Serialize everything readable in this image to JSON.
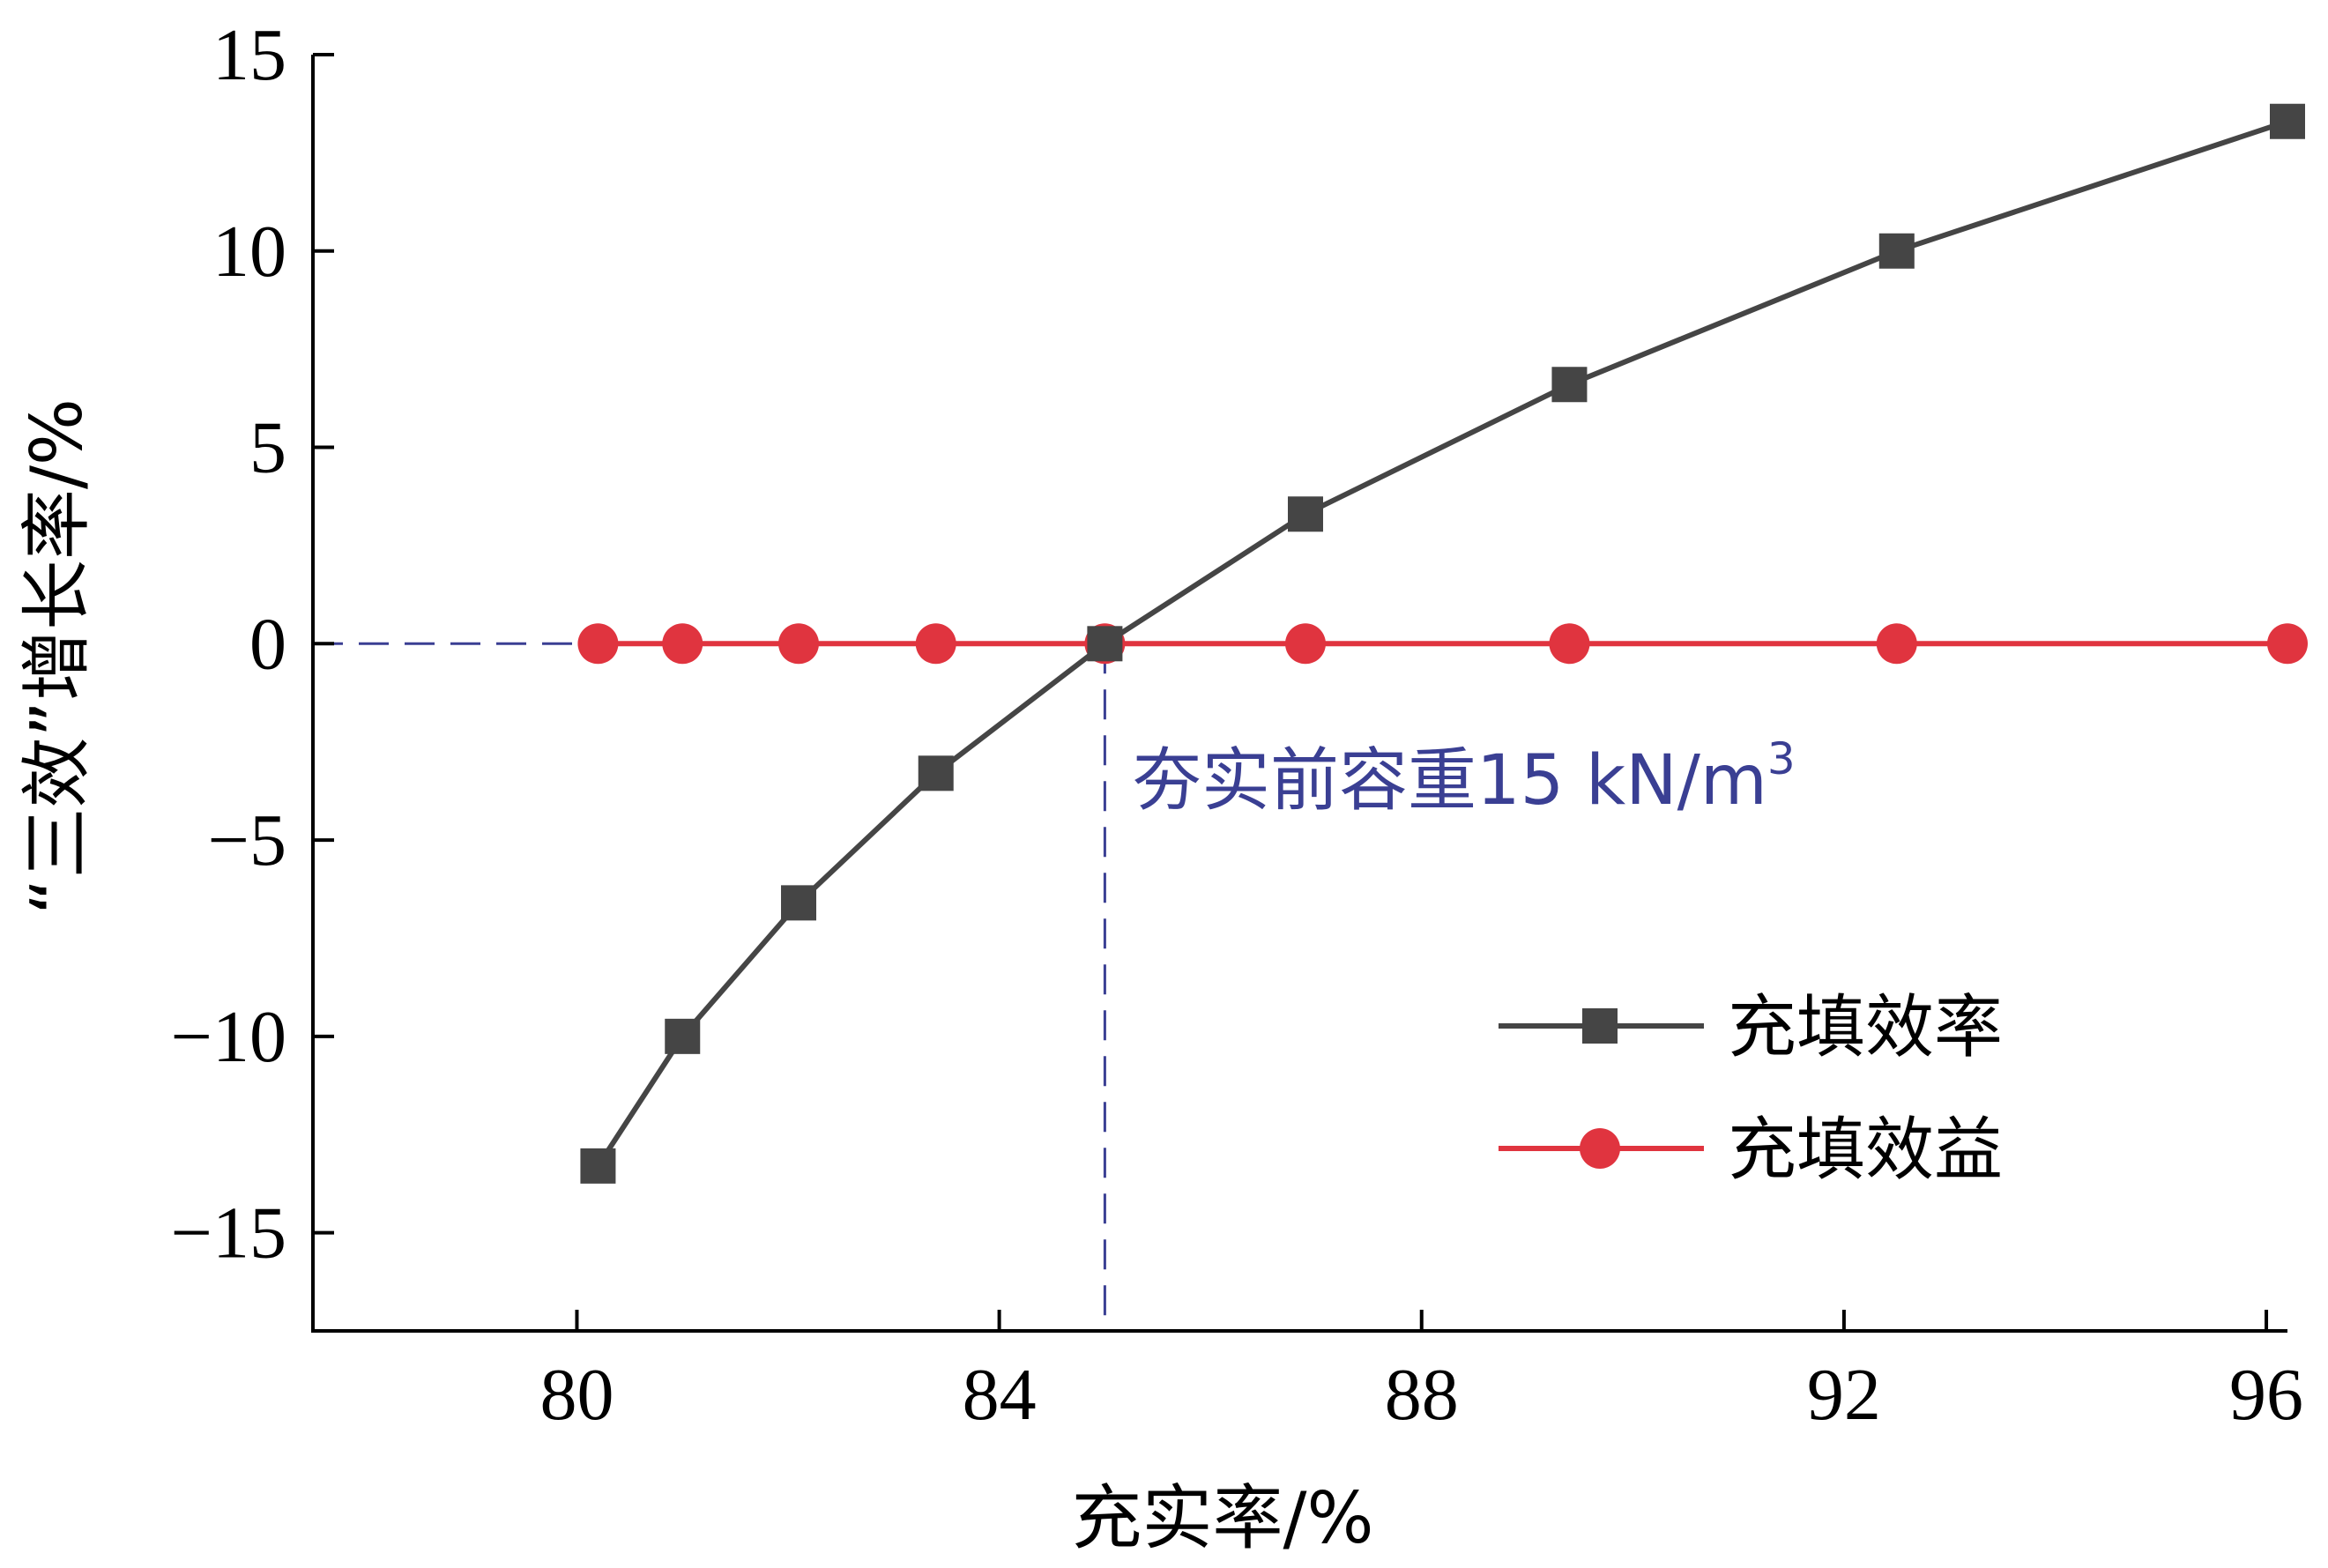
{
  "chart_data": {
    "type": "line",
    "xlabel": "充实率/%",
    "ylabel": "“三效”增长率/%",
    "xlim": [
      77.5,
      96.2
    ],
    "ylim": [
      -17.5,
      15
    ],
    "xticks": [
      80,
      84,
      88,
      92,
      96
    ],
    "yticks": [
      15,
      10,
      5,
      0,
      -5,
      -10,
      -15
    ],
    "xtick_labels": [
      "80",
      "84",
      "88",
      "92",
      "96"
    ],
    "ytick_labels": [
      "15",
      "10",
      "5",
      "0",
      "−5",
      "−10",
      "−15"
    ],
    "grid": false,
    "legend_position": "bottom-right",
    "series": [
      {
        "name": "充填效率",
        "color": "#454545",
        "marker": "square",
        "x": [
          80.2,
          81.0,
          82.1,
          83.4,
          85.0,
          86.9,
          89.4,
          92.5,
          96.2
        ],
        "y": [
          -13.3,
          -10.0,
          -6.6,
          -3.3,
          0.0,
          3.3,
          6.6,
          10.0,
          13.3
        ]
      },
      {
        "name": "充填效益",
        "color": "#e0343f",
        "marker": "circle",
        "x": [
          80.2,
          81.0,
          82.1,
          83.4,
          85.0,
          86.9,
          89.4,
          92.5,
          96.2
        ],
        "y": [
          0,
          0,
          0,
          0,
          0,
          0,
          0,
          0,
          0
        ]
      }
    ],
    "reference": {
      "x": 85.0,
      "y": 0,
      "color": "#3a3f93",
      "annotation_main": "夯实前容重15 kN/m",
      "annotation_sup": "3"
    }
  }
}
